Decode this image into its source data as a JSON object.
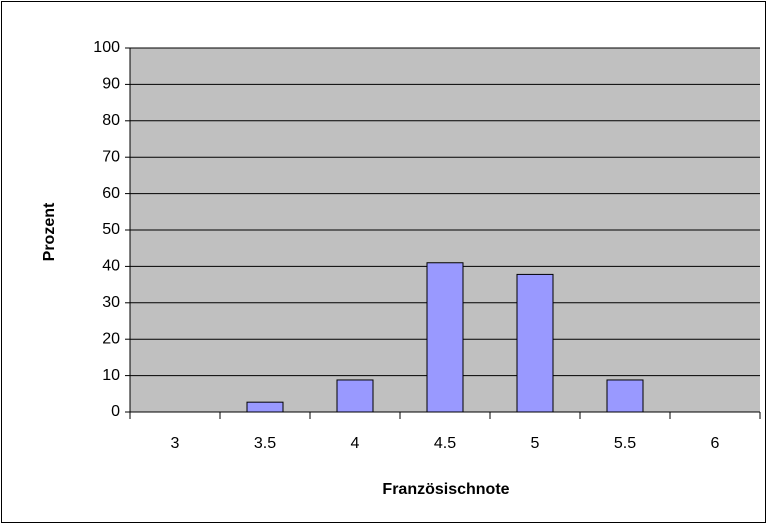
{
  "chart_data": {
    "type": "bar",
    "categories": [
      "3",
      "3.5",
      "4",
      "4.5",
      "5",
      "5.5",
      "6"
    ],
    "values": [
      0,
      2.7,
      8.8,
      41,
      37.8,
      8.8,
      0
    ],
    "color": "#9999ff",
    "xlabel": "Französischnote",
    "ylabel": "Prozent",
    "ylim": [
      0,
      100
    ],
    "yticks": [
      0,
      10,
      20,
      30,
      40,
      50,
      60,
      70,
      80,
      90,
      100
    ],
    "grid": true
  }
}
